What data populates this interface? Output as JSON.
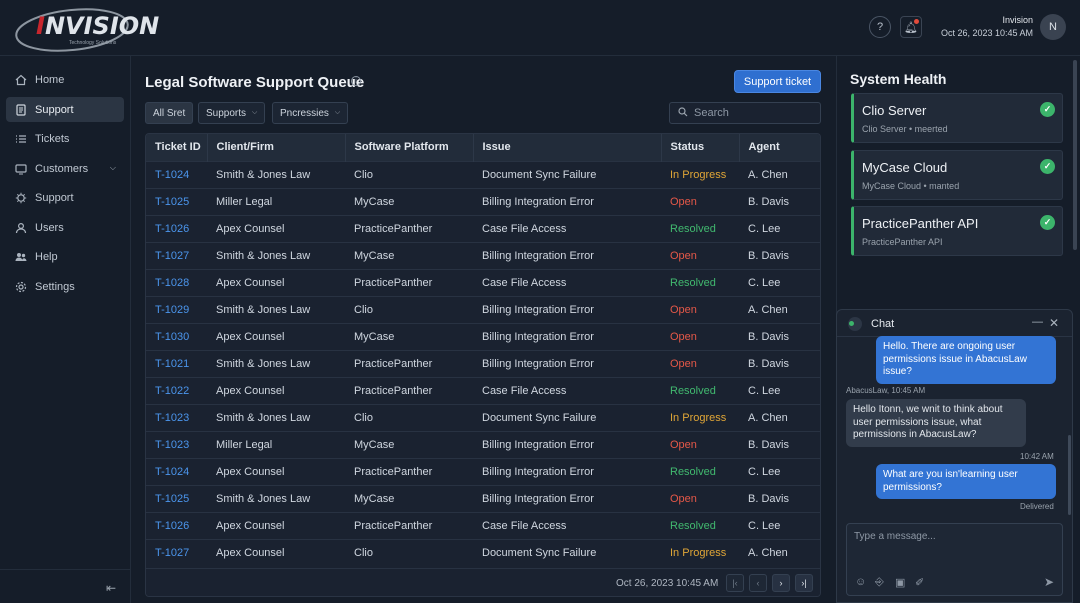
{
  "brand": {
    "logo_main": "NVISION",
    "logo_accent": "I",
    "logo_sub": "Technology Solutions"
  },
  "header": {
    "help_icon": "question-icon",
    "bell_icon": "bell-icon",
    "user_name": "Invision",
    "datetime": "Oct 26, 2023 10:45 AM",
    "avatar_initial": "N"
  },
  "sidebar": {
    "items": [
      {
        "label": "Home",
        "icon": "home-icon"
      },
      {
        "label": "Support",
        "icon": "document-icon",
        "active": true
      },
      {
        "label": "Tickets",
        "icon": "list-icon"
      },
      {
        "label": "Customers",
        "icon": "monitor-icon",
        "has_chevron": true
      },
      {
        "label": "Support",
        "icon": "gear-icon"
      },
      {
        "label": "Users",
        "icon": "user-icon"
      },
      {
        "label": "Help",
        "icon": "users-icon"
      },
      {
        "label": "Settings",
        "icon": "settings-icon"
      }
    ],
    "collapse_icon": "collapse-arrow-icon"
  },
  "main": {
    "title": "Legal Software Support Queue",
    "primary_button": "Support ticket",
    "filters": [
      {
        "label": "All Sret",
        "selected": true
      },
      {
        "label": "Supports",
        "dropdown": true
      },
      {
        "label": "Pncressies",
        "dropdown": true
      }
    ],
    "search_placeholder": "Search",
    "columns": [
      "Ticket ID",
      "Client/Firm",
      "Software Platform",
      "Issue",
      "Status",
      "Agent"
    ],
    "rows": [
      {
        "id": "T-1024",
        "client": "Smith & Jones Law",
        "platform": "Clio",
        "issue": "Document Sync Failure",
        "status": "In Progress",
        "agent": "A. Chen"
      },
      {
        "id": "T-1025",
        "client": "Miller Legal",
        "platform": "MyCase",
        "issue": "Billing Integration Error",
        "status": "Open",
        "agent": "B. Davis"
      },
      {
        "id": "T-1026",
        "client": "Apex Counsel",
        "platform": "PracticePanther",
        "issue": "Case File Access",
        "status": "Resolved",
        "agent": "C. Lee"
      },
      {
        "id": "T-1027",
        "client": "Smith & Jones Law",
        "platform": "MyCase",
        "issue": "Billing Integration Error",
        "status": "Open",
        "agent": "B. Davis"
      },
      {
        "id": "T-1028",
        "client": "Apex Counsel",
        "platform": "PracticePanther",
        "issue": "Case File Access",
        "status": "Resolved",
        "agent": "C. Lee"
      },
      {
        "id": "T-1029",
        "client": "Smith & Jones Law",
        "platform": "Clio",
        "issue": "Billing Integration Error",
        "status": "Open",
        "agent": "A. Chen"
      },
      {
        "id": "T-1030",
        "client": "Apex Counsel",
        "platform": "MyCase",
        "issue": "Billing Integration Error",
        "status": "Open",
        "agent": "B. Davis"
      },
      {
        "id": "T-1021",
        "client": "Smith & Jones Law",
        "platform": "PracticePanther",
        "issue": "Billing Integration Error",
        "status": "Open",
        "agent": "B. Davis"
      },
      {
        "id": "T-1022",
        "client": "Apex Counsel",
        "platform": "PracticePanther",
        "issue": "Case File Access",
        "status": "Resolved",
        "agent": "C. Lee"
      },
      {
        "id": "T-1023",
        "client": "Smith & Jones Law",
        "platform": "Clio",
        "issue": "Document Sync Failure",
        "status": "In Progress",
        "agent": "A. Chen"
      },
      {
        "id": "T-1023",
        "client": "Miller Legal",
        "platform": "MyCase",
        "issue": "Billing Integration Error",
        "status": "Open",
        "agent": "B. Davis"
      },
      {
        "id": "T-1024",
        "client": "Apex Counsel",
        "platform": "PracticePanther",
        "issue": "Billing Integration Error",
        "status": "Resolved",
        "agent": "C. Lee"
      },
      {
        "id": "T-1025",
        "client": "Smith & Jones Law",
        "platform": "MyCase",
        "issue": "Billing Integration Error",
        "status": "Open",
        "agent": "B. Davis"
      },
      {
        "id": "T-1026",
        "client": "Apex Counsel",
        "platform": "PracticePanther",
        "issue": "Case File Access",
        "status": "Resolved",
        "agent": "C. Lee"
      },
      {
        "id": "T-1027",
        "client": "Apex Counsel",
        "platform": "Clio",
        "issue": "Document Sync Failure",
        "status": "In Progress",
        "agent": "A. Chen"
      }
    ],
    "footer_datetime": "Oct 26, 2023 10:45 AM",
    "pager_icons": [
      "first-page-icon",
      "prev-page-icon",
      "next-page-icon",
      "last-page-icon"
    ]
  },
  "system_health": {
    "title": "System Health",
    "services": [
      {
        "name": "Clio Server",
        "sub": "Clio Server • meerted"
      },
      {
        "name": "MyCase Cloud",
        "sub": "MyCase Cloud • manted"
      },
      {
        "name": "PracticePanther API",
        "sub": "PracticePanther API"
      }
    ]
  },
  "chat": {
    "title": "Chat",
    "messages": [
      {
        "from": "out",
        "text": "Hello. There are ongoing user permissions issue in AbacusLaw issue?"
      },
      {
        "from": "meta",
        "text": "AbacusLaw, 10:45 AM"
      },
      {
        "from": "in",
        "text": "Hello Itonn, we wnit to think about user permissions issue, what permissions in AbacusLaw?"
      },
      {
        "from": "meta",
        "text": "10:42 AM"
      },
      {
        "from": "out",
        "text": "What are you isn'learning user permissions?"
      },
      {
        "from": "meta",
        "text": "Delivered"
      }
    ],
    "input_placeholder": "Type a message...",
    "toolbar_icons": [
      "emoji-icon",
      "attach-icon",
      "image-icon",
      "clip-icon",
      "send-icon"
    ]
  },
  "colors": {
    "accent": "#2f6fd0",
    "in_progress": "#e0a637",
    "open": "#e55848",
    "resolved": "#41b96f",
    "link": "#4b95ec",
    "logo_red": "#c8262d"
  }
}
